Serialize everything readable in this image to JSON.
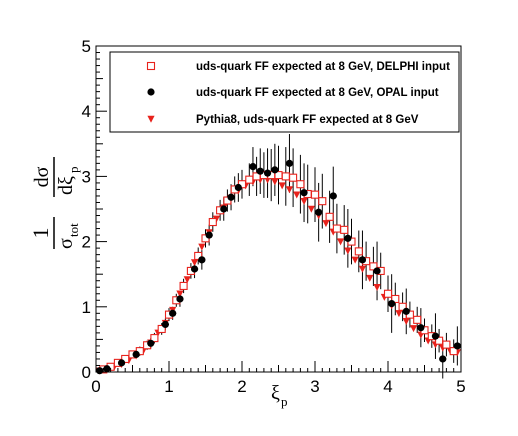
{
  "chart_data": {
    "type": "scatter",
    "xlim": [
      0,
      5
    ],
    "ylim": [
      0,
      5
    ],
    "x_ticks": [
      "0",
      "1",
      "2",
      "3",
      "4",
      "5"
    ],
    "y_ticks": [
      "0",
      "1",
      "2",
      "3",
      "4",
      "5"
    ],
    "xlabel": {
      "main": "ξ",
      "sub": "p"
    },
    "ylabel": {
      "num": "1",
      "den_main": "σ",
      "den_sub": "tot",
      "frac_num": "dσ",
      "frac_den_main": "dξ",
      "frac_den_sub": "p"
    },
    "legend_position": "top",
    "series": [
      {
        "name": "uds-quark FF expected at 8 GeV, DELPHI input",
        "marker": "open-square",
        "color": "#e8221c",
        "points": [
          [
            0.1,
            0.04,
            0.03
          ],
          [
            0.2,
            0.08,
            0.04
          ],
          [
            0.3,
            0.14,
            0.05
          ],
          [
            0.4,
            0.2,
            0.05
          ],
          [
            0.5,
            0.27,
            0.06
          ],
          [
            0.6,
            0.32,
            0.07
          ],
          [
            0.7,
            0.41,
            0.07
          ],
          [
            0.8,
            0.52,
            0.08
          ],
          [
            0.9,
            0.66,
            0.09
          ],
          [
            1.0,
            0.88,
            0.1
          ],
          [
            1.1,
            1.1,
            0.1
          ],
          [
            1.2,
            1.32,
            0.11
          ],
          [
            1.3,
            1.55,
            0.12
          ],
          [
            1.4,
            1.78,
            0.13
          ],
          [
            1.5,
            2.05,
            0.14
          ],
          [
            1.6,
            2.3,
            0.15
          ],
          [
            1.7,
            2.48,
            0.16
          ],
          [
            1.8,
            2.63,
            0.17
          ],
          [
            1.9,
            2.8,
            0.2
          ],
          [
            2.0,
            2.88,
            0.22
          ],
          [
            2.1,
            2.95,
            0.25
          ],
          [
            2.2,
            3.0,
            0.3
          ],
          [
            2.3,
            3.02,
            0.35
          ],
          [
            2.4,
            3.02,
            0.4
          ],
          [
            2.5,
            3.02,
            0.45
          ],
          [
            2.6,
            3.0,
            0.45
          ],
          [
            2.7,
            2.98,
            0.45
          ],
          [
            2.8,
            2.88,
            0.45
          ],
          [
            2.9,
            2.73,
            0.45
          ],
          [
            3.0,
            2.72,
            0.42
          ],
          [
            3.1,
            2.62,
            0.42
          ],
          [
            3.2,
            2.38,
            0.4
          ],
          [
            3.3,
            2.2,
            0.38
          ],
          [
            3.4,
            2.18,
            0.38
          ],
          [
            3.5,
            2.0,
            0.35
          ],
          [
            3.6,
            1.85,
            0.32
          ],
          [
            3.7,
            1.7,
            0.3
          ],
          [
            3.8,
            1.62,
            0.3
          ],
          [
            3.9,
            1.55,
            0.28
          ],
          [
            4.0,
            1.2,
            0.28
          ],
          [
            4.1,
            1.12,
            0.25
          ],
          [
            4.2,
            1.0,
            0.22
          ],
          [
            4.3,
            0.88,
            0.2
          ],
          [
            4.4,
            0.8,
            0.2
          ],
          [
            4.5,
            0.64,
            0.18
          ],
          [
            4.6,
            0.55,
            0.18
          ],
          [
            4.7,
            0.48,
            0.18
          ],
          [
            4.8,
            0.42,
            0.18
          ],
          [
            4.9,
            0.32,
            0.18
          ]
        ]
      },
      {
        "name": "uds-quark FF expected at 8 GeV, OPAL input",
        "marker": "filled-circle",
        "color": "#000000",
        "points": [
          [
            0.05,
            0.02,
            0.02
          ],
          [
            0.15,
            0.05,
            0.03
          ],
          [
            0.35,
            0.14,
            0.05
          ],
          [
            0.55,
            0.27,
            0.06
          ],
          [
            0.75,
            0.44,
            0.08
          ],
          [
            0.95,
            0.73,
            0.09
          ],
          [
            1.05,
            0.9,
            0.1
          ],
          [
            1.15,
            1.12,
            0.12
          ],
          [
            1.35,
            1.58,
            0.14
          ],
          [
            1.45,
            1.72,
            0.15
          ],
          [
            1.55,
            2.1,
            0.16
          ],
          [
            1.75,
            2.5,
            0.18
          ],
          [
            1.85,
            2.68,
            0.2
          ],
          [
            1.95,
            2.83,
            0.22
          ],
          [
            2.15,
            3.15,
            0.3
          ],
          [
            2.25,
            3.08,
            0.35
          ],
          [
            2.35,
            3.05,
            0.38
          ],
          [
            2.45,
            3.1,
            0.4
          ],
          [
            2.65,
            3.2,
            0.45
          ],
          [
            2.85,
            2.75,
            0.45
          ],
          [
            3.05,
            2.45,
            0.45
          ],
          [
            3.25,
            2.7,
            0.45
          ],
          [
            3.45,
            2.05,
            0.45
          ],
          [
            3.65,
            1.72,
            0.45
          ],
          [
            3.85,
            1.55,
            0.45
          ],
          [
            4.05,
            1.05,
            0.45
          ],
          [
            4.25,
            0.93,
            0.35
          ],
          [
            4.45,
            0.68,
            0.3
          ],
          [
            4.65,
            0.55,
            0.35
          ],
          [
            4.75,
            0.2,
            0.3
          ],
          [
            4.95,
            0.4,
            0.3
          ]
        ]
      },
      {
        "name": "Pythia8, uds-quark FF expected at 8 GeV",
        "marker": "filled-triangle-down",
        "color": "#e8221c",
        "points": [
          [
            0.05,
            0.02
          ],
          [
            0.15,
            0.05
          ],
          [
            0.25,
            0.08
          ],
          [
            0.35,
            0.12
          ],
          [
            0.45,
            0.18
          ],
          [
            0.55,
            0.25
          ],
          [
            0.65,
            0.33
          ],
          [
            0.75,
            0.45
          ],
          [
            0.85,
            0.6
          ],
          [
            0.95,
            0.75
          ],
          [
            1.05,
            0.95
          ],
          [
            1.15,
            1.2
          ],
          [
            1.25,
            1.42
          ],
          [
            1.35,
            1.68
          ],
          [
            1.45,
            1.92
          ],
          [
            1.55,
            2.14
          ],
          [
            1.65,
            2.35
          ],
          [
            1.75,
            2.52
          ],
          [
            1.85,
            2.67
          ],
          [
            1.95,
            2.78
          ],
          [
            2.05,
            2.86
          ],
          [
            2.15,
            2.92
          ],
          [
            2.25,
            2.95
          ],
          [
            2.35,
            2.95
          ],
          [
            2.45,
            2.92
          ],
          [
            2.55,
            2.86
          ],
          [
            2.65,
            2.8
          ],
          [
            2.75,
            2.72
          ],
          [
            2.85,
            2.62
          ],
          [
            2.95,
            2.5
          ],
          [
            3.05,
            2.4
          ],
          [
            3.15,
            2.28
          ],
          [
            3.25,
            2.15
          ],
          [
            3.35,
            2.0
          ],
          [
            3.45,
            1.86
          ],
          [
            3.55,
            1.72
          ],
          [
            3.65,
            1.58
          ],
          [
            3.75,
            1.44
          ],
          [
            3.85,
            1.3
          ],
          [
            3.95,
            1.15
          ],
          [
            4.05,
            1.02
          ],
          [
            4.15,
            0.9
          ],
          [
            4.25,
            0.78
          ],
          [
            4.35,
            0.67
          ],
          [
            4.45,
            0.57
          ],
          [
            4.55,
            0.48
          ],
          [
            4.65,
            0.42
          ],
          [
            4.75,
            0.37
          ],
          [
            4.85,
            0.33
          ],
          [
            4.95,
            0.3
          ]
        ]
      }
    ]
  }
}
